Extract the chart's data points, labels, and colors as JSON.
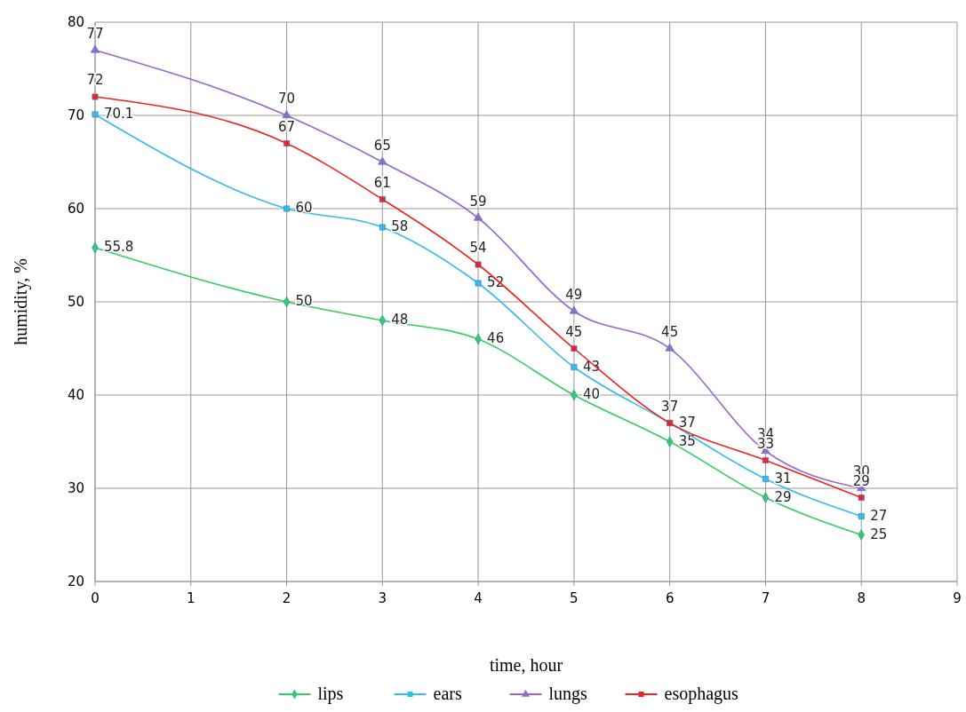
{
  "chart_data": {
    "type": "line",
    "xlabel": "time, hour",
    "ylabel": "humidity, %",
    "x": [
      0,
      2,
      3,
      4,
      5,
      6,
      7,
      8
    ],
    "xlim": [
      0,
      9
    ],
    "xticks": [
      0,
      1,
      2,
      3,
      4,
      5,
      6,
      7,
      8,
      9
    ],
    "ylim": [
      20,
      80
    ],
    "yticks": [
      20,
      30,
      40,
      50,
      60,
      70,
      80
    ],
    "grid": true,
    "legend": "bottom",
    "data_labels": true,
    "series": [
      {
        "name": "lips",
        "color": "#33cc66",
        "marker": "diamond",
        "values": [
          55.8,
          50,
          48,
          46,
          40,
          35,
          29,
          25
        ]
      },
      {
        "name": "ears",
        "color": "#33bbee",
        "marker": "square",
        "values": [
          70.1,
          60,
          58,
          52,
          43,
          37,
          31,
          27
        ]
      },
      {
        "name": "lungs",
        "color": "#9966cc",
        "marker": "triangle",
        "values": [
          77,
          70,
          65,
          59,
          49,
          45,
          34,
          30
        ]
      },
      {
        "name": "esophagus",
        "color": "#ee2222",
        "marker": "square",
        "values": [
          72,
          67,
          61,
          54,
          45,
          37,
          33,
          29
        ]
      }
    ]
  }
}
